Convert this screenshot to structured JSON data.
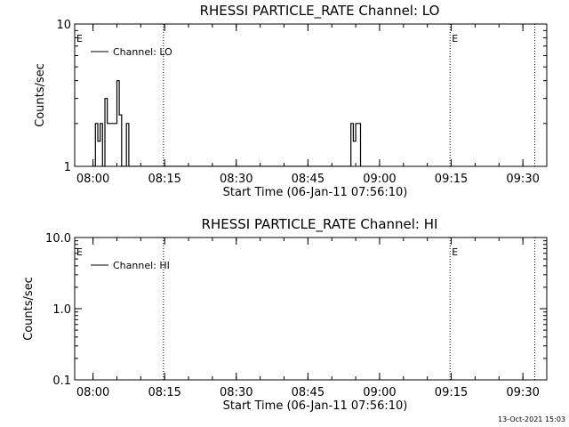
{
  "chart_data": [
    {
      "type": "line",
      "title": "RHESSI PARTICLE_RATE Channel: LO",
      "xlabel": "Start Time (06-Jan-11 07:56:10)",
      "ylabel": "Counts/sec",
      "yscale": "log",
      "ylim": [
        1,
        10
      ],
      "xlim": [
        "07:56:10",
        "09:35:00"
      ],
      "ytick_labels": [
        "1",
        "10"
      ],
      "xtick_labels": [
        "08:00",
        "08:15",
        "08:30",
        "08:45",
        "09:00",
        "09:15",
        "09:30"
      ],
      "legend": {
        "entry": "Channel: LO",
        "placement": "top-left"
      },
      "event_markers": [
        {
          "time": "07:56:10",
          "label": "E"
        },
        {
          "time": "08:14:45",
          "label": ""
        },
        {
          "time": "09:14:45",
          "label": "E"
        },
        {
          "time": "09:32:30",
          "label": ""
        }
      ],
      "series": [
        {
          "name": "Channel: LO",
          "points": [
            [
              "08:00:00",
              0.9
            ],
            [
              "08:00:30",
              2
            ],
            [
              "08:01:00",
              1.5
            ],
            [
              "08:01:30",
              2
            ],
            [
              "08:02:00",
              0.9
            ],
            [
              "08:02:30",
              3
            ],
            [
              "08:03:00",
              2
            ],
            [
              "08:04:00",
              2
            ],
            [
              "08:05:00",
              4
            ],
            [
              "08:05:30",
              2.3
            ],
            [
              "08:06:00",
              0.9
            ],
            [
              "08:06:30",
              0.9
            ],
            [
              "08:07:00",
              2
            ],
            [
              "08:07:30",
              0.9
            ],
            [
              "08:53:30",
              0.9
            ],
            [
              "08:54:00",
              2
            ],
            [
              "08:54:30",
              1.5
            ],
            [
              "08:55:00",
              2
            ],
            [
              "08:55:30",
              2
            ],
            [
              "08:56:00",
              0.9
            ]
          ]
        }
      ]
    },
    {
      "type": "line",
      "title": "RHESSI PARTICLE_RATE Channel: HI",
      "xlabel": "Start Time (06-Jan-11 07:56:10)",
      "ylabel": "Counts/sec",
      "yscale": "log",
      "ylim": [
        0.1,
        10
      ],
      "xlim": [
        "07:56:10",
        "09:35:00"
      ],
      "ytick_labels": [
        "0.1",
        "1.0",
        "10.0"
      ],
      "xtick_labels": [
        "08:00",
        "08:15",
        "08:30",
        "08:45",
        "09:00",
        "09:15",
        "09:30"
      ],
      "legend": {
        "entry": "Channel: HI",
        "placement": "top-left"
      },
      "event_markers": [
        {
          "time": "07:56:10",
          "label": "E"
        },
        {
          "time": "08:14:45",
          "label": ""
        },
        {
          "time": "09:14:45",
          "label": "E"
        },
        {
          "time": "09:32:30",
          "label": ""
        }
      ],
      "series": [
        {
          "name": "Channel: HI",
          "points": []
        }
      ]
    }
  ],
  "footer": {
    "timestamp": "13-Oct-2021 15:03"
  }
}
